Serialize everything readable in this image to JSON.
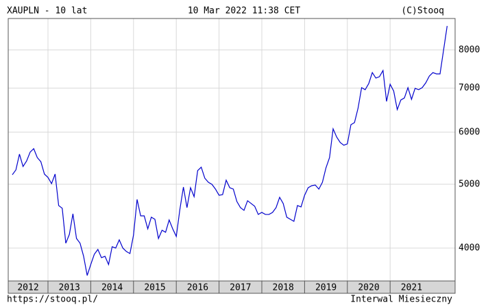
{
  "chart_data": {
    "type": "line",
    "title": "XAUPLN - 10 lat",
    "subtitle": "10 Mar 2022 11:38 CET",
    "credit": "(C)Stooq",
    "footer_left": "https://stooq.pl/",
    "footer_right": "Interwal Miesieczny",
    "log_scale": true,
    "grid": true,
    "ylim": [
      3565,
      8930
    ],
    "yticks": [
      4000,
      5000,
      6000,
      7000,
      8000
    ],
    "xticks": [
      2012,
      2013,
      2014,
      2015,
      2016,
      2017,
      2018,
      2019,
      2020,
      2021
    ],
    "series": [
      {
        "name": "XAUPLN",
        "color": "#0000cc",
        "values": [
          5170,
          5258,
          5556,
          5321,
          5424,
          5596,
          5663,
          5489,
          5411,
          5182,
          5121,
          5011,
          5182,
          4641,
          4597,
          4068,
          4196,
          4510,
          4136,
          4068,
          3886,
          3634,
          3776,
          3914,
          3981,
          3868,
          3886,
          3776,
          4019,
          4000,
          4117,
          4000,
          3952,
          3924,
          4186,
          4742,
          4477,
          4477,
          4278,
          4456,
          4424,
          4136,
          4257,
          4227,
          4413,
          4278,
          4166,
          4575,
          4952,
          4608,
          4940,
          4788,
          5245,
          5308,
          5108,
          5035,
          4999,
          4916,
          4811,
          4823,
          5072,
          4940,
          4916,
          4708,
          4608,
          4564,
          4720,
          4675,
          4630,
          4499,
          4531,
          4499,
          4499,
          4531,
          4608,
          4777,
          4675,
          4456,
          4424,
          4392,
          4641,
          4619,
          4811,
          4940,
          4975,
          4987,
          4916,
          5035,
          5296,
          5489,
          6071,
          5899,
          5787,
          5732,
          5759,
          6159,
          6204,
          6524,
          7011,
          6961,
          7112,
          7391,
          7250,
          7285,
          7444,
          6682,
          7095,
          6928,
          6493,
          6714,
          6763,
          7011,
          6730,
          6994,
          6961,
          7011,
          7130,
          7302,
          7391,
          7356,
          7356,
          7999,
          8700
        ]
      }
    ]
  }
}
